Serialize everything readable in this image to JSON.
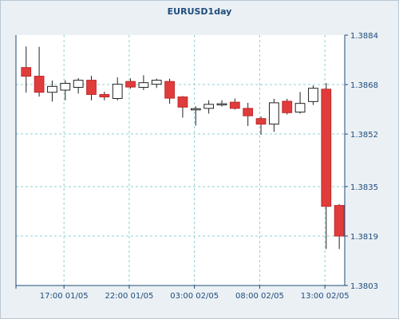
{
  "chart_data": {
    "type": "candlestick",
    "title": "EURUSD1day",
    "grid": true,
    "ylim": [
      1.3803,
      1.3884
    ],
    "y_ticks": [
      "1.3884",
      "1.3868",
      "1.3852",
      "1.3835",
      "1.3819",
      "1.3803"
    ],
    "x_ticks": [
      "17:00 01/05",
      "22:00 01/05",
      "03:00 02/05",
      "08:00 02/05",
      "13:00 02/05"
    ],
    "colors": {
      "up": "#ffffff",
      "down": "#e03c3c",
      "grid": "#8fd0d0",
      "axis": "#1f4b7a"
    },
    "candles": [
      {
        "o": 1.38735,
        "h": 1.38803,
        "l": 1.38654,
        "c": 1.38707
      },
      {
        "o": 1.38707,
        "h": 1.38802,
        "l": 1.38641,
        "c": 1.38655
      },
      {
        "o": 1.38655,
        "h": 1.38693,
        "l": 1.38625,
        "c": 1.38674
      },
      {
        "o": 1.38662,
        "h": 1.38694,
        "l": 1.38629,
        "c": 1.38684
      },
      {
        "o": 1.38671,
        "h": 1.38701,
        "l": 1.38651,
        "c": 1.38694
      },
      {
        "o": 1.38694,
        "h": 1.38708,
        "l": 1.38629,
        "c": 1.38648
      },
      {
        "o": 1.38648,
        "h": 1.38657,
        "l": 1.38629,
        "c": 1.3864
      },
      {
        "o": 1.38635,
        "h": 1.38703,
        "l": 1.38629,
        "c": 1.38681
      },
      {
        "o": 1.3869,
        "h": 1.387,
        "l": 1.38667,
        "c": 1.38672
      },
      {
        "o": 1.38671,
        "h": 1.3871,
        "l": 1.38662,
        "c": 1.38686
      },
      {
        "o": 1.38681,
        "h": 1.38699,
        "l": 1.38669,
        "c": 1.38694
      },
      {
        "o": 1.3869,
        "h": 1.38699,
        "l": 1.38618,
        "c": 1.38636
      },
      {
        "o": 1.3864,
        "h": 1.38643,
        "l": 1.38573,
        "c": 1.38607
      },
      {
        "o": 1.38598,
        "h": 1.3861,
        "l": 1.38547,
        "c": 1.38602
      },
      {
        "o": 1.38603,
        "h": 1.38629,
        "l": 1.38586,
        "c": 1.38616
      },
      {
        "o": 1.38618,
        "h": 1.38629,
        "l": 1.38609,
        "c": 1.38618
      },
      {
        "o": 1.38623,
        "h": 1.38635,
        "l": 1.38599,
        "c": 1.38603
      },
      {
        "o": 1.38603,
        "h": 1.38621,
        "l": 1.38546,
        "c": 1.38579
      },
      {
        "o": 1.3857,
        "h": 1.38577,
        "l": 1.38518,
        "c": 1.38552
      },
      {
        "o": 1.38552,
        "h": 1.38634,
        "l": 1.38527,
        "c": 1.38621
      },
      {
        "o": 1.38626,
        "h": 1.38634,
        "l": 1.38583,
        "c": 1.38589
      },
      {
        "o": 1.38591,
        "h": 1.38656,
        "l": 1.38586,
        "c": 1.38619
      },
      {
        "o": 1.38625,
        "h": 1.38677,
        "l": 1.38614,
        "c": 1.38668
      },
      {
        "o": 1.38665,
        "h": 1.38685,
        "l": 1.38148,
        "c": 1.38286
      },
      {
        "o": 1.38289,
        "h": 1.38293,
        "l": 1.38148,
        "c": 1.3819
      }
    ]
  }
}
